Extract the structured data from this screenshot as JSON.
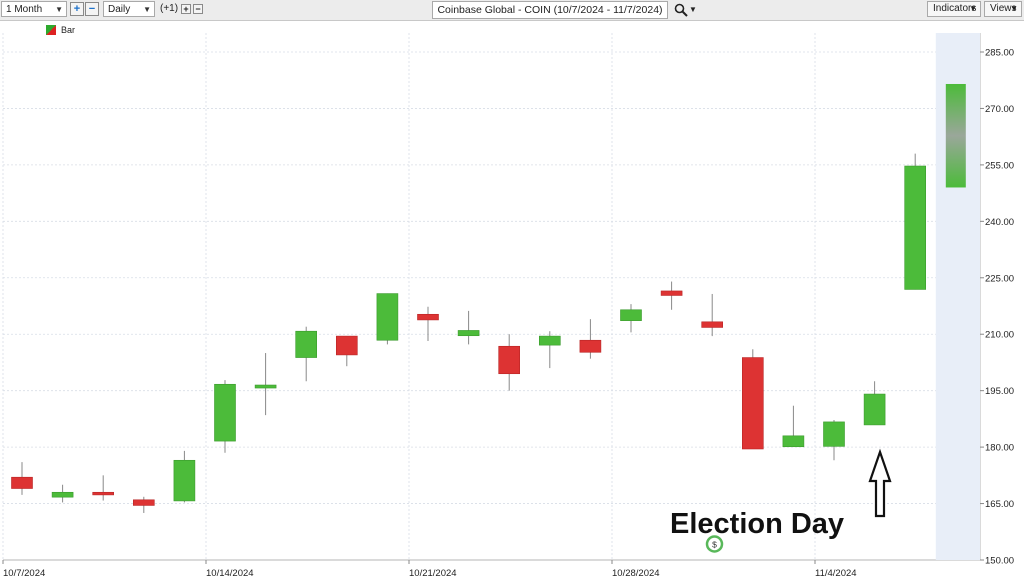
{
  "toolbar": {
    "period": "1 Month",
    "interval": "Daily",
    "offset": "(+1)",
    "title": "Coinbase Global - COIN (10/7/2024 - 11/7/2024)",
    "indicators_label": "Indicators",
    "views_label": "Views"
  },
  "legend": {
    "label": "Bar"
  },
  "annotation": {
    "text": "Election Day",
    "marker": "$"
  },
  "colors": {
    "up": "#4cbb3a",
    "down": "#dd3333",
    "projection": "#9aa79a",
    "projection_band": "#e8eef8"
  },
  "chart_data": {
    "type": "candlestick",
    "ylim": [
      150,
      290
    ],
    "yticks": [
      "150.00",
      "165.00",
      "180.00",
      "195.00",
      "210.00",
      "225.00",
      "240.00",
      "255.00",
      "270.00",
      "285.00"
    ],
    "ytick_values": [
      150,
      165,
      180,
      195,
      210,
      225,
      240,
      255,
      270,
      285
    ],
    "xtick_labels": [
      {
        "index": 0,
        "label": "10/7/2024"
      },
      {
        "index": 5,
        "label": "10/14/2024"
      },
      {
        "index": 10,
        "label": "10/21/2024"
      },
      {
        "index": 15,
        "label": "10/28/2024"
      },
      {
        "index": 20,
        "label": "11/4/2024"
      }
    ],
    "candles": [
      {
        "date": "10/7/2024",
        "open": 172.0,
        "high": 176.0,
        "low": 167.3,
        "close": 169.0
      },
      {
        "date": "10/8/2024",
        "open": 166.7,
        "high": 170.0,
        "low": 165.3,
        "close": 168.0
      },
      {
        "date": "10/9/2024",
        "open": 168.0,
        "high": 172.5,
        "low": 165.8,
        "close": 167.3
      },
      {
        "date": "10/10/2024",
        "open": 166.0,
        "high": 166.8,
        "low": 162.5,
        "close": 164.5
      },
      {
        "date": "10/11/2024",
        "open": 165.7,
        "high": 179.0,
        "low": 165.3,
        "close": 176.5
      },
      {
        "date": "10/14/2024",
        "open": 181.6,
        "high": 197.8,
        "low": 178.5,
        "close": 196.7
      },
      {
        "date": "10/15/2024",
        "open": 195.7,
        "high": 205.0,
        "low": 188.5,
        "close": 196.5
      },
      {
        "date": "10/16/2024",
        "open": 203.8,
        "high": 212.0,
        "low": 197.5,
        "close": 210.8
      },
      {
        "date": "10/17/2024",
        "open": 209.5,
        "high": 209.5,
        "low": 201.5,
        "close": 204.5
      },
      {
        "date": "10/18/2024",
        "open": 208.4,
        "high": 220.8,
        "low": 207.3,
        "close": 220.8
      },
      {
        "date": "10/21/2024",
        "open": 215.3,
        "high": 217.3,
        "low": 208.2,
        "close": 213.8
      },
      {
        "date": "10/22/2024",
        "open": 209.6,
        "high": 216.2,
        "low": 207.3,
        "close": 211.0
      },
      {
        "date": "10/23/2024",
        "open": 206.8,
        "high": 210.0,
        "low": 195.0,
        "close": 199.5
      },
      {
        "date": "10/24/2024",
        "open": 207.1,
        "high": 210.8,
        "low": 201.0,
        "close": 209.5
      },
      {
        "date": "10/25/2024",
        "open": 208.4,
        "high": 214.0,
        "low": 203.5,
        "close": 205.2
      },
      {
        "date": "10/28/2024",
        "open": 213.6,
        "high": 218.0,
        "low": 210.5,
        "close": 216.5
      },
      {
        "date": "10/29/2024",
        "open": 221.5,
        "high": 224.0,
        "low": 216.5,
        "close": 220.3
      },
      {
        "date": "10/30/2024",
        "open": 213.3,
        "high": 220.7,
        "low": 209.5,
        "close": 211.8
      },
      {
        "date": "10/31/2024",
        "open": 203.8,
        "high": 206.0,
        "low": 179.5,
        "close": 179.5
      },
      {
        "date": "11/1/2024",
        "open": 180.1,
        "high": 191.0,
        "low": 180.1,
        "close": 183.0
      },
      {
        "date": "11/4/2024",
        "open": 180.2,
        "high": 187.2,
        "low": 176.5,
        "close": 186.7
      },
      {
        "date": "11/5/2024",
        "open": 185.9,
        "high": 197.5,
        "low": 185.9,
        "close": 194.1
      },
      {
        "date": "11/6/2024",
        "open": 221.9,
        "high": 258.0,
        "low": 221.9,
        "close": 254.7
      }
    ],
    "projection": {
      "low": 249.0,
      "high": 276.5
    }
  }
}
